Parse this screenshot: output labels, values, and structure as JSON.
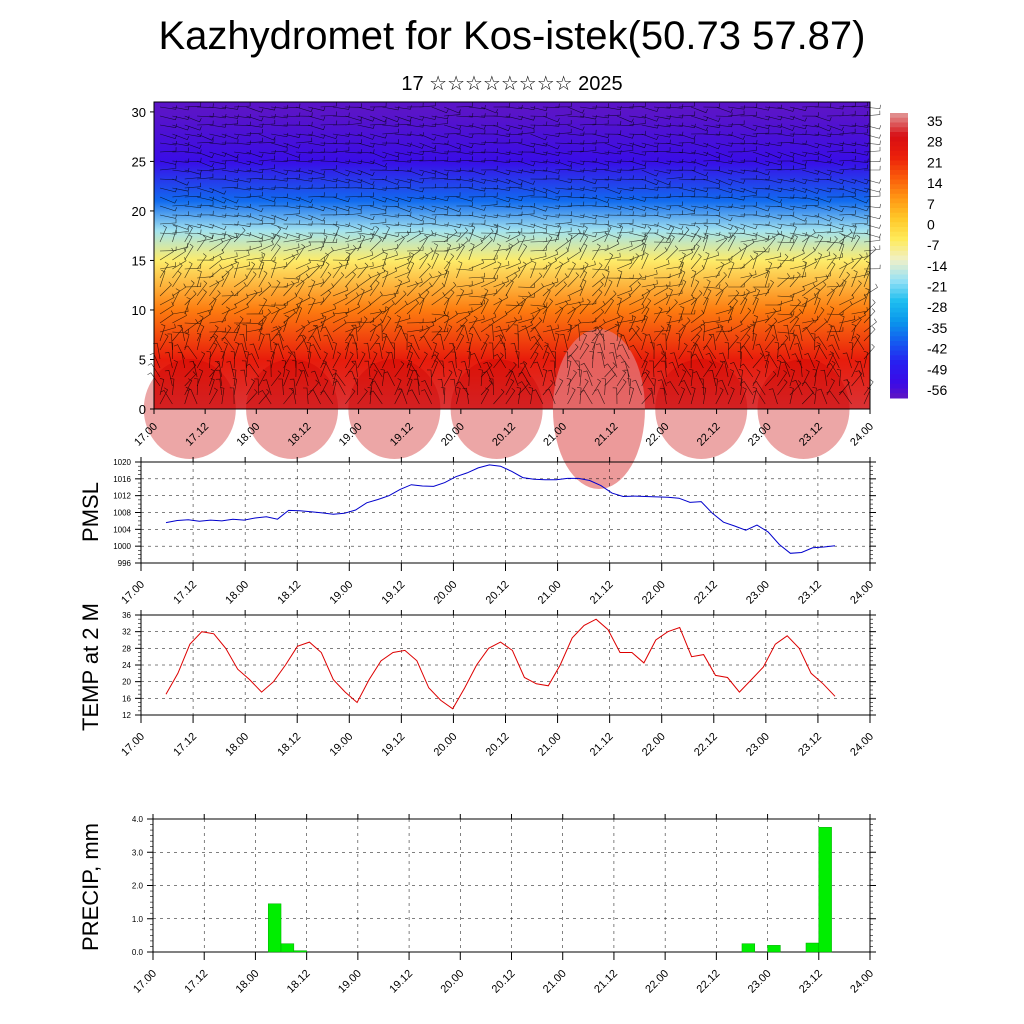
{
  "title": "Kazhydromet for Kos-istek(50.73 57.87)",
  "subtitle": "17 ☆☆☆☆☆☆☆☆ 2025",
  "x_tick_labels": [
    "17.00",
    "17.12",
    "18.00",
    "18.12",
    "19.00",
    "19.12",
    "20.00",
    "20.12",
    "21.00",
    "21.12",
    "22.00",
    "22.12",
    "23.00",
    "23.12",
    "24.00"
  ],
  "chart_data": [
    {
      "type": "heatmap",
      "title": "",
      "xlabel": "",
      "ylabel": "",
      "x": [
        "17.00",
        "17.12",
        "18.00",
        "18.12",
        "19.00",
        "19.12",
        "20.00",
        "20.12",
        "21.00",
        "21.12",
        "22.00",
        "22.12",
        "23.00",
        "23.12",
        "24.00"
      ],
      "ylim": [
        0,
        31
      ],
      "y_ticks": [
        0,
        5,
        10,
        15,
        20,
        25,
        30
      ],
      "colorbar_labels": [
        "35",
        "28",
        "21",
        "14",
        "7",
        "0",
        "-7",
        "-14",
        "-21",
        "-28",
        "-35",
        "-42",
        "-49",
        "-56"
      ],
      "overlay": "wind barbs",
      "temperature_profile": [
        {
          "level": 0,
          "value": 30
        },
        {
          "level": 5,
          "value": 22
        },
        {
          "level": 10,
          "value": 10
        },
        {
          "level": 15,
          "value": -8
        },
        {
          "level": 18,
          "value": -20
        },
        {
          "level": 21,
          "value": -40
        },
        {
          "level": 25,
          "value": -55
        },
        {
          "level": 30,
          "value": -60
        }
      ],
      "colors": {
        "warm": "#e8100e",
        "cold": "#3a10e0"
      }
    },
    {
      "type": "line",
      "title": "",
      "xlabel": "",
      "ylabel": "PMSL",
      "ylim": [
        996,
        1020
      ],
      "y_ticks": [
        "996",
        "1000",
        "1004",
        "1008",
        "1012",
        "1016",
        "1020"
      ],
      "color": "#0000cc",
      "series": [
        {
          "values": [
            1005.6,
            1006.1,
            1006.3,
            1005.9,
            1006.2,
            1006.0,
            1006.4,
            1006.2,
            1006.7,
            1007.0,
            1006.4,
            1008.5,
            1008.4,
            1008.2,
            1007.9,
            1007.6,
            1007.8,
            1008.6,
            1010.3,
            1011.1,
            1012.0,
            1013.5,
            1014.6,
            1014.3,
            1014.2,
            1015.1,
            1016.5,
            1017.4,
            1018.6,
            1019.3,
            1019.0,
            1017.8,
            1016.3,
            1015.9,
            1015.8,
            1015.8,
            1016.1,
            1016.1,
            1015.6,
            1014.4,
            1012.6,
            1011.8,
            1011.9,
            1011.8,
            1011.7,
            1011.6,
            1011.4,
            1010.4,
            1010.6,
            1007.8,
            1005.7,
            1004.8,
            1003.8,
            1005.0,
            1003.4,
            1000.4,
            998.3,
            998.5,
            999.6,
            999.8,
            1000.1
          ]
        }
      ]
    },
    {
      "type": "line",
      "title": "",
      "xlabel": "",
      "ylabel": "TEMP at 2 M",
      "ylim": [
        12,
        36
      ],
      "y_ticks": [
        "12",
        "16",
        "20",
        "24",
        "28",
        "32",
        "36"
      ],
      "color": "#dd0000",
      "series": [
        {
          "values": [
            17.0,
            22.0,
            29.0,
            32.0,
            31.5,
            28.0,
            23.0,
            20.5,
            17.5,
            20.0,
            24.0,
            28.5,
            29.5,
            27.0,
            20.5,
            17.5,
            15.0,
            20.5,
            25.0,
            27.0,
            27.5,
            25.0,
            18.5,
            15.5,
            13.5,
            18.5,
            24.0,
            28.0,
            29.5,
            27.5,
            21.0,
            19.5,
            19.0,
            24.0,
            30.5,
            33.5,
            35.0,
            32.5,
            27.0,
            27.0,
            24.5,
            30.0,
            32.0,
            33.0,
            26.0,
            26.5,
            21.5,
            21.0,
            17.5,
            20.5,
            23.5,
            29.0,
            31.0,
            28.0,
            22.0,
            19.5,
            16.5
          ]
        }
      ]
    },
    {
      "type": "bar",
      "title": "",
      "xlabel": "",
      "ylabel": "PRECIP, mm",
      "ylim": [
        0,
        4
      ],
      "y_ticks": [
        "0.0",
        "1.0",
        "2.0",
        "3.0",
        "4.0"
      ],
      "color": "#00ee00",
      "bars": [
        {
          "step": 9,
          "value": 1.45
        },
        {
          "step": 10,
          "value": 0.25
        },
        {
          "step": 11,
          "value": 0.04
        },
        {
          "step": 46,
          "value": 0.25
        },
        {
          "step": 48,
          "value": 0.2
        },
        {
          "step": 51,
          "value": 0.27
        },
        {
          "step": 52,
          "value": 3.75
        }
      ]
    }
  ]
}
